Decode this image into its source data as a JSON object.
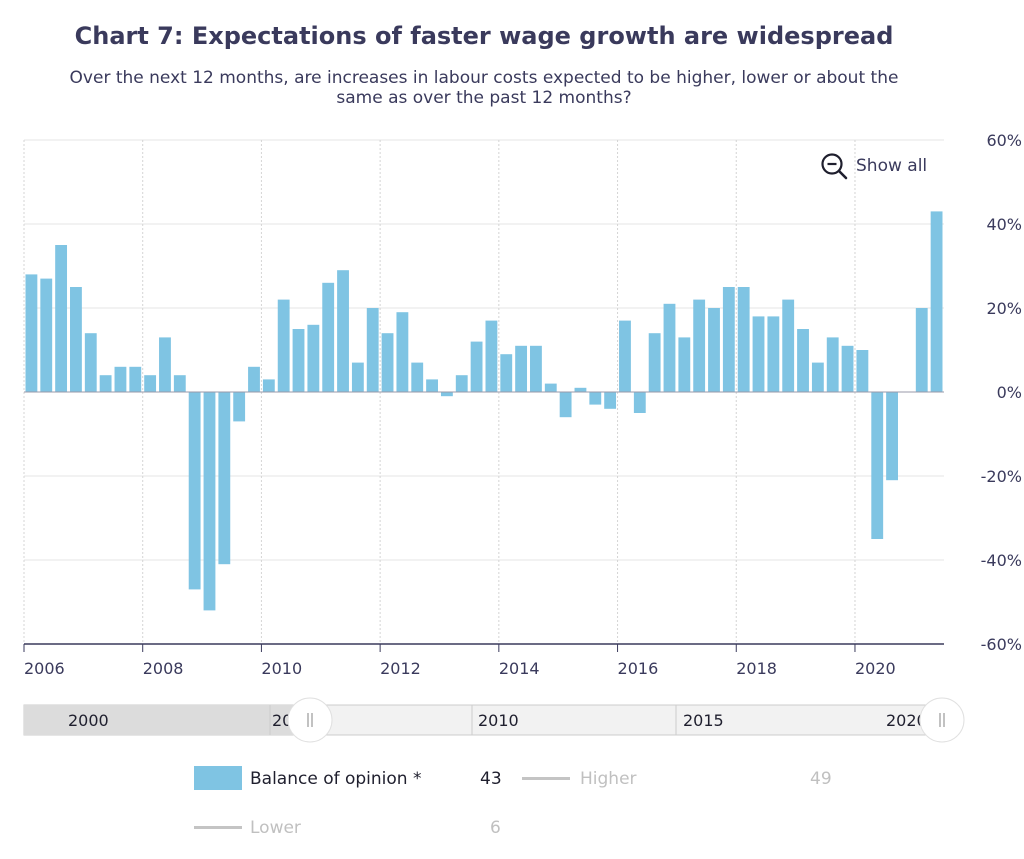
{
  "chart_data": {
    "type": "bar",
    "title": "Chart 7: Expectations of faster wage growth are widespread",
    "subtitle": "Over the next 12 months, are increases in labour costs expected to be higher, lower or about the same as over the past 12 months?",
    "x_tick_labels": [
      "2006",
      "2008",
      "2010",
      "2012",
      "2014",
      "2016",
      "2018",
      "2020"
    ],
    "y_tick_labels": [
      "60%",
      "40%",
      "20%",
      "0%",
      "-20%",
      "-40%",
      "-60%"
    ],
    "ylim": [
      -60,
      60
    ],
    "xlim": [
      2006.0,
      2021.5
    ],
    "series": [
      {
        "name": "Balance of opinion *",
        "color": "#7fc4e3",
        "start": 2006.0,
        "step": 0.25,
        "values": [
          28,
          27,
          35,
          25,
          14,
          4,
          6,
          6,
          4,
          13,
          4,
          -47,
          -52,
          -41,
          -7,
          6,
          3,
          22,
          15,
          16,
          26,
          29,
          7,
          20,
          14,
          19,
          7,
          3,
          -1,
          4,
          12,
          17,
          9,
          11,
          11,
          2,
          -6,
          1,
          -3,
          -4,
          17,
          -5,
          14,
          21,
          13,
          22,
          20,
          25,
          25,
          18,
          18,
          22,
          15,
          7,
          13,
          11,
          10,
          -35,
          -21,
          0,
          20,
          43
        ]
      }
    ]
  },
  "show_all_label": "Show all",
  "navigator": {
    "labels": [
      "2000",
      "20",
      "2010",
      "2015",
      "2020"
    ]
  },
  "legend": {
    "balance": {
      "label": "Balance of opinion *",
      "value": "43"
    },
    "higher": {
      "label": "Higher",
      "value": "49"
    },
    "lower": {
      "label": "Lower",
      "value": "6"
    }
  }
}
